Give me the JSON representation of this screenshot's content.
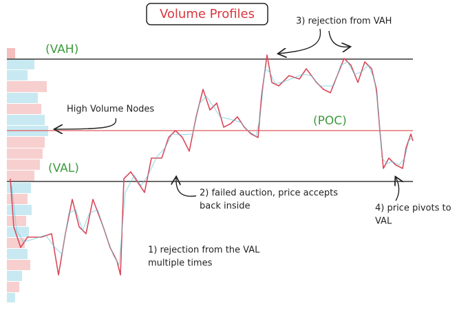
{
  "title": "Volume Profiles",
  "levels": {
    "vah": "(VAH)",
    "poc": "(POC)",
    "val": "(VAL)"
  },
  "high_volume_nodes": "High Volume Nodes",
  "notes": [
    {
      "lines": [
        "3) rejection from VAH"
      ]
    },
    {
      "lines": [
        "2) failed auction, price accepts",
        "back inside"
      ]
    },
    {
      "lines": [
        "4) price pivots to",
        "VAL"
      ]
    },
    {
      "lines": [
        "1) rejection from the VAL",
        "multiple times"
      ]
    }
  ]
}
